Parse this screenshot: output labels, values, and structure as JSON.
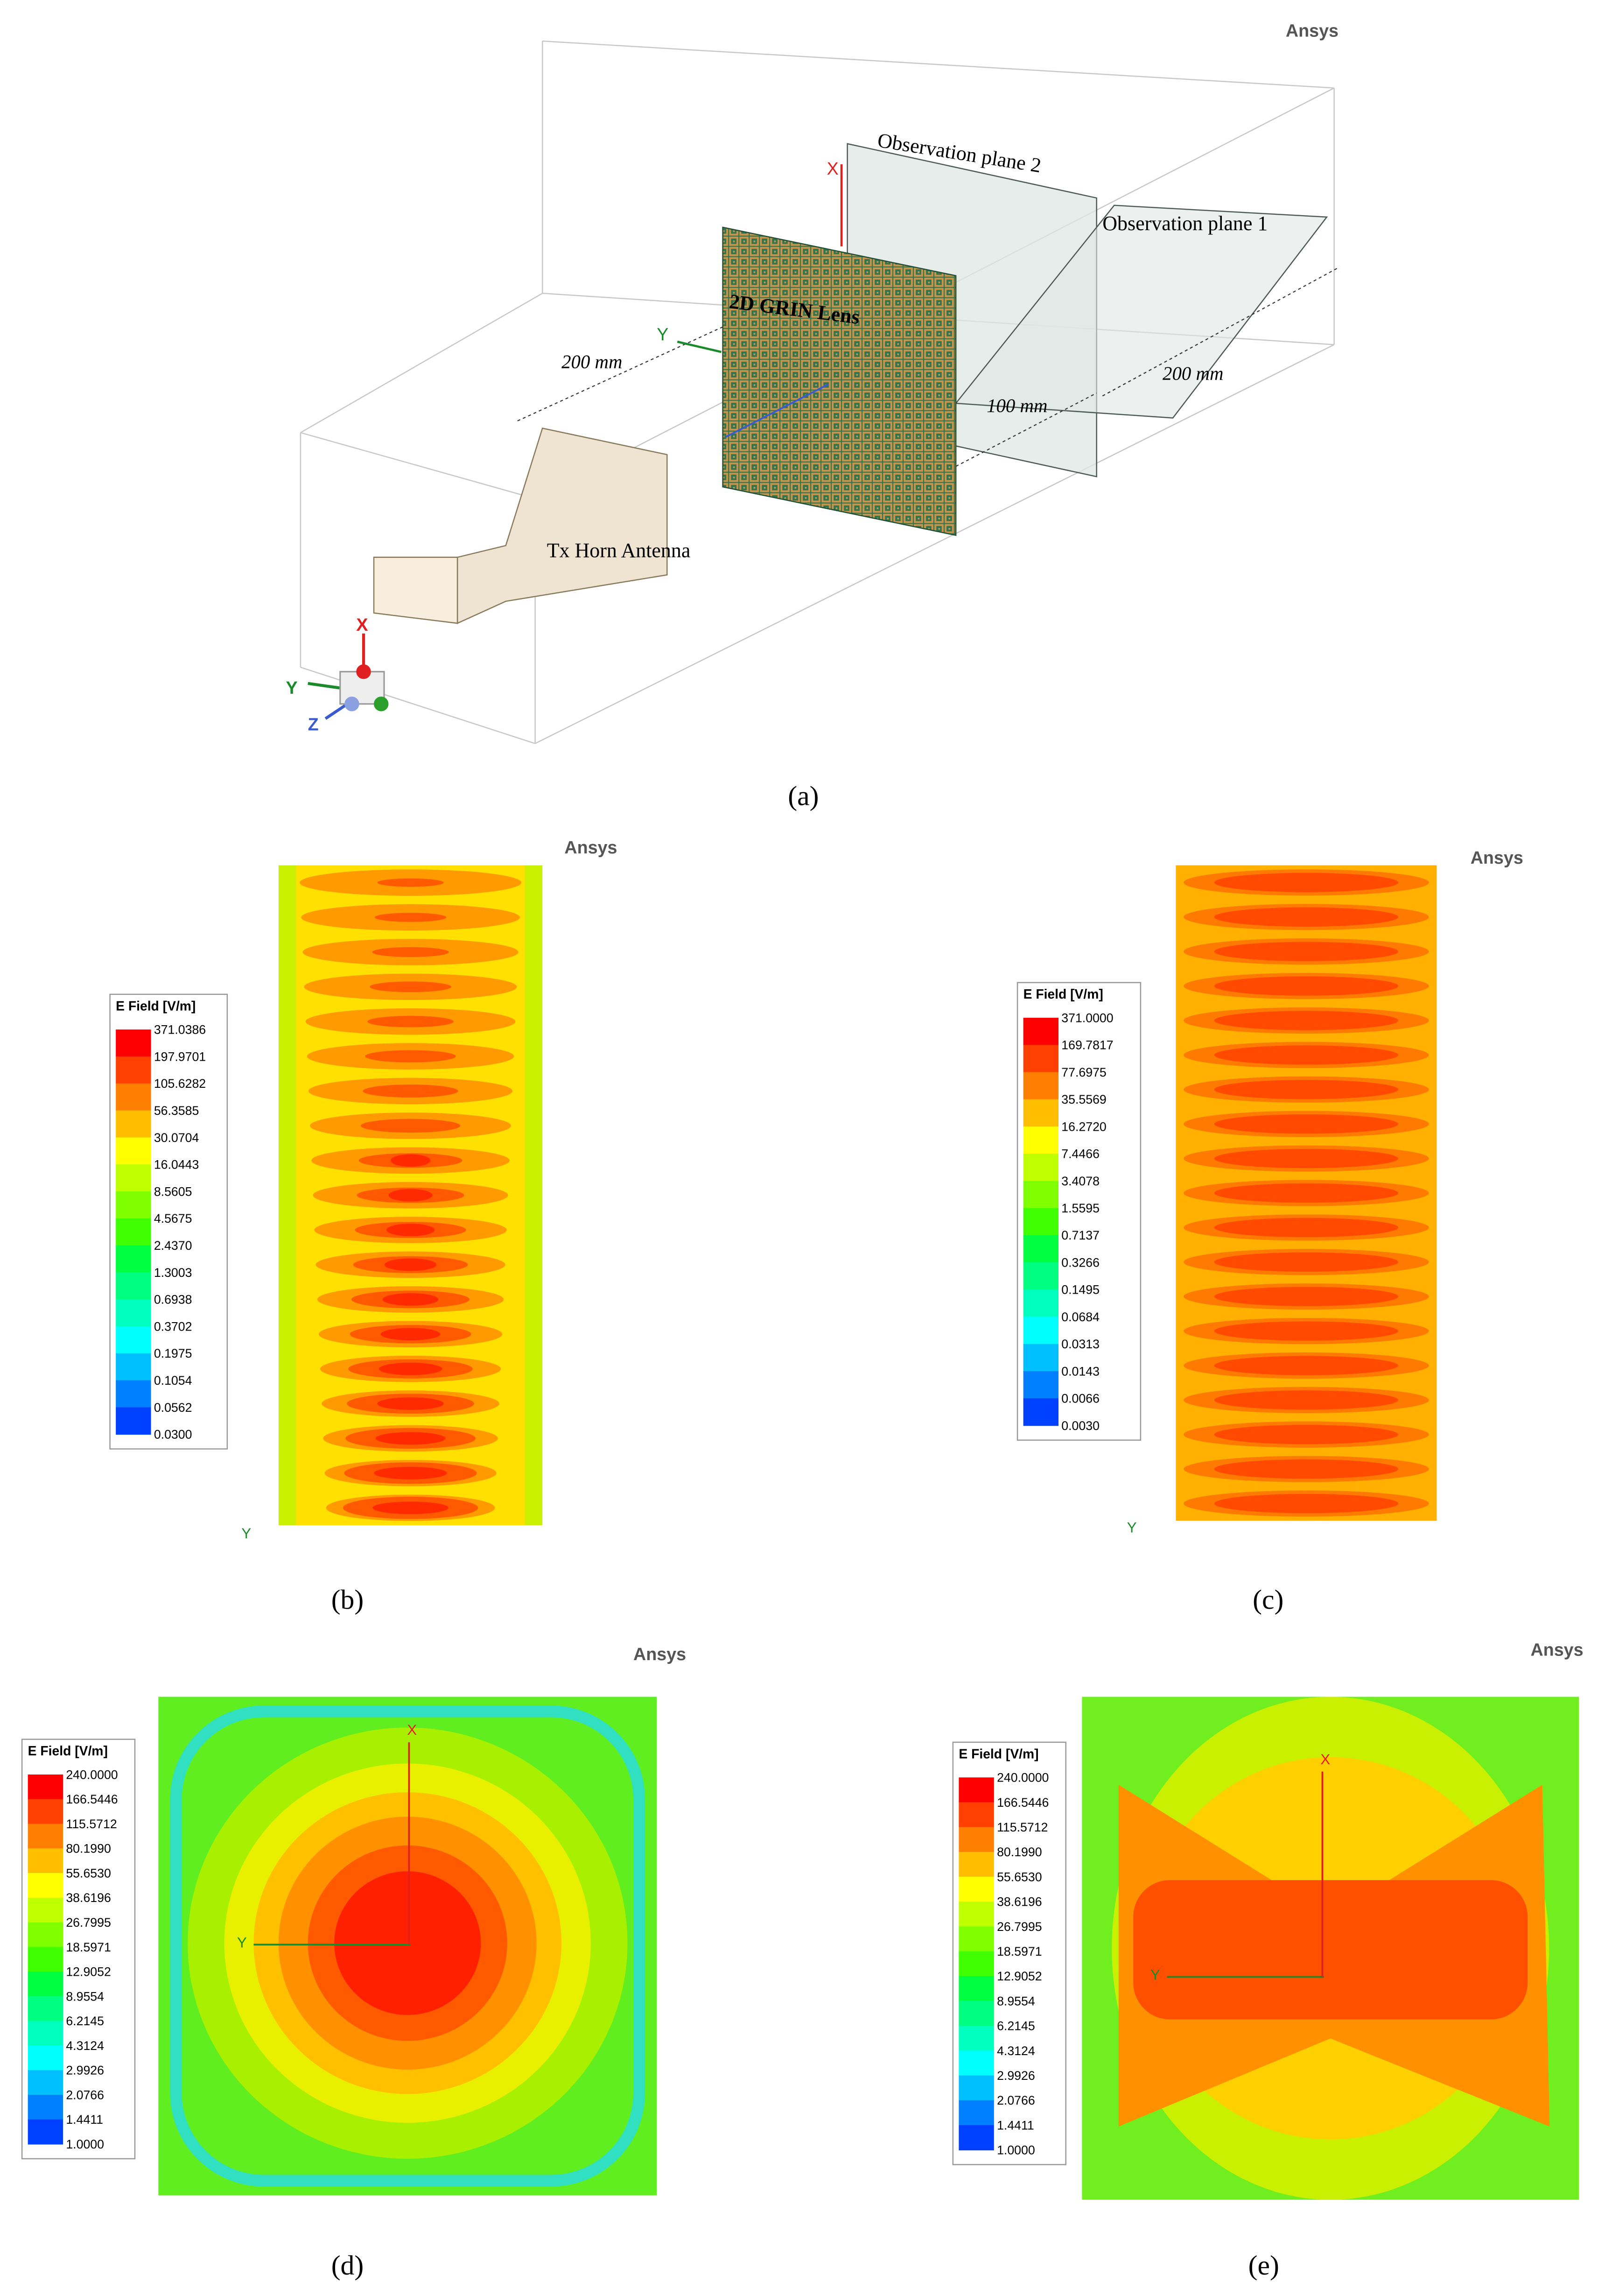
{
  "figure": {
    "panel_a": {
      "watermark": "Ansys",
      "caption": "(a)",
      "labels": {
        "plane2": "Observation plane 2",
        "plane1": "Observation plane 1",
        "lens": "2D GRIN Lens",
        "dist_horn_lens": "200 mm",
        "dist_lens_plane": "100 mm",
        "dist_plane_end": "200 mm",
        "horn": "Tx Horn Antenna"
      },
      "lens_axes": [
        "X",
        "Y"
      ],
      "triad_axes": [
        "X",
        "Y",
        "Z"
      ]
    },
    "panels": [
      {
        "watermark": "Ansys",
        "legend_title": "E Field [V/m]",
        "legend_values": [
          "371.0386",
          "197.9701",
          "105.6282",
          "56.3585",
          "30.0704",
          "16.0443",
          "8.5605",
          "4.5675",
          "2.4370",
          "1.3003",
          "0.6938",
          "0.3702",
          "0.1975",
          "0.1054",
          "0.0562",
          "0.0300"
        ],
        "axes": [
          "Y"
        ],
        "caption": "(b)"
      },
      {
        "watermark": "Ansys",
        "legend_title": "E Field [V/m]",
        "legend_values": [
          "371.0000",
          "169.7817",
          "77.6975",
          "35.5569",
          "16.2720",
          "7.4466",
          "3.4078",
          "1.5595",
          "0.7137",
          "0.3266",
          "0.1495",
          "0.0684",
          "0.0313",
          "0.0143",
          "0.0066",
          "0.0030"
        ],
        "axes": [
          "Y"
        ],
        "caption": "(c)"
      },
      {
        "watermark": "Ansys",
        "legend_title": "E Field [V/m]",
        "legend_values": [
          "240.0000",
          "166.5446",
          "115.5712",
          "80.1990",
          "55.6530",
          "38.6196",
          "26.7995",
          "18.5971",
          "12.9052",
          "8.9554",
          "6.2145",
          "4.3124",
          "2.9926",
          "2.0766",
          "1.4411",
          "1.0000"
        ],
        "axes": [
          "X",
          "Y"
        ],
        "caption": "(d)"
      },
      {
        "watermark": "Ansys",
        "legend_title": "E Field [V/m]",
        "legend_values": [
          "240.0000",
          "166.5446",
          "115.5712",
          "80.1990",
          "55.6530",
          "38.6196",
          "26.7995",
          "18.5971",
          "12.9052",
          "8.9554",
          "6.2145",
          "4.3124",
          "2.9926",
          "2.0766",
          "1.4411",
          "1.0000"
        ],
        "axes": [
          "X",
          "Y"
        ],
        "caption": "(e)"
      }
    ]
  }
}
